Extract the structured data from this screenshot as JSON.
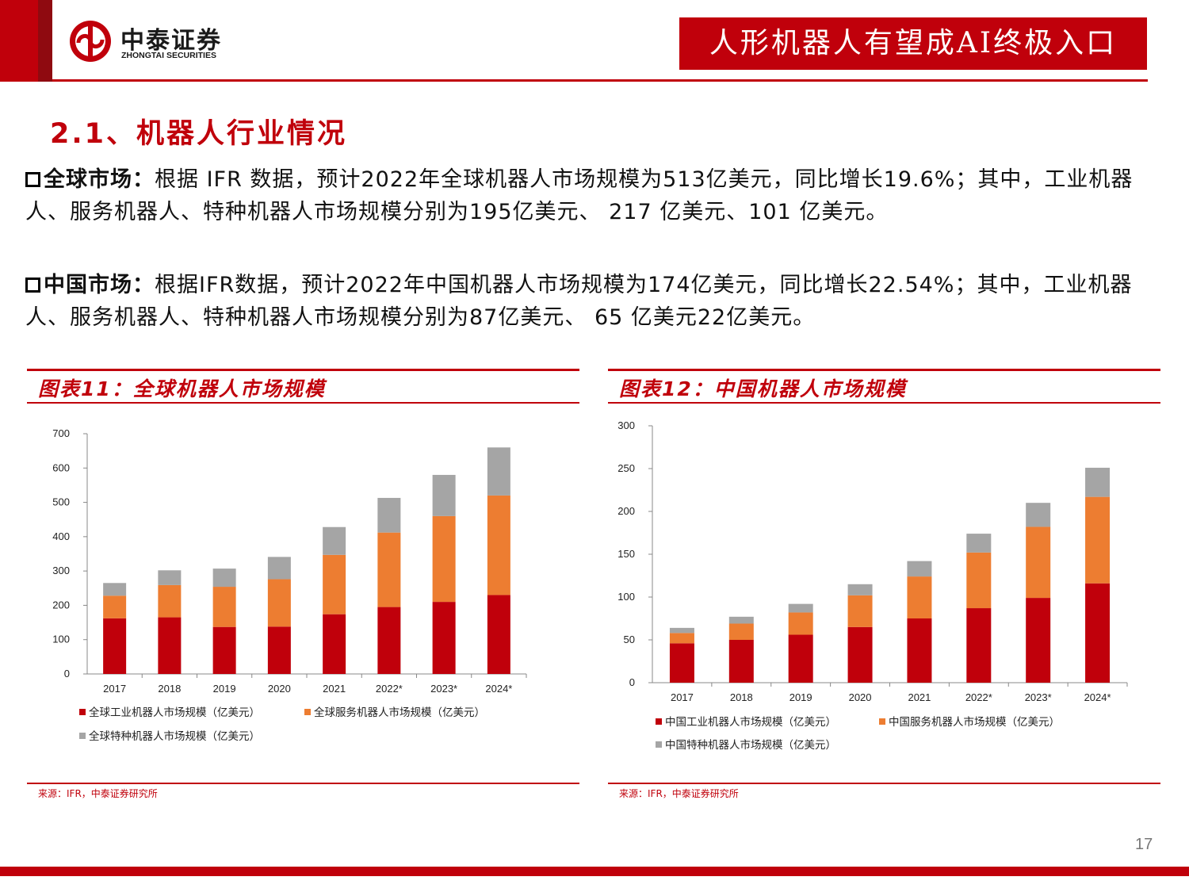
{
  "header": {
    "logo_cn": "中泰证券",
    "logo_en": "ZHONGTAI SECURITIES",
    "title": "人形机器人有望成AI终极入口",
    "brand_color": "#c0000b"
  },
  "section": {
    "title": "2.1、机器人行业情况"
  },
  "paragraphs": [
    {
      "lead": "全球市场：",
      "text": "根据 IFR 数据，预计2022年全球机器人市场规模为513亿美元，同比增长19.6%；其中，工业机器人、服务机器人、特种机器人市场规模分别为195亿美元、 217 亿美元、101 亿美元。"
    },
    {
      "lead": "中国市场：",
      "text": "根据IFR数据，预计2022年中国机器人市场规模为174亿美元，同比增长22.54%；其中，工业机器人、服务机器人、特种机器人市场规模分别为87亿美元、 65 亿美元22亿美元。"
    }
  ],
  "charts": [
    {
      "panel_title": "图表11：全球机器人市场规模",
      "source": "来源：IFR，中泰证券研究所"
    },
    {
      "panel_title": "图表12：中国机器人市场规模",
      "source": "来源：IFR，中泰证券研究所"
    }
  ],
  "chart_data": [
    {
      "type": "bar",
      "stacked": true,
      "title": "",
      "categories": [
        "2017",
        "2018",
        "2019",
        "2020",
        "2021",
        "2022*",
        "2023*",
        "2024*"
      ],
      "ylim": [
        0,
        700
      ],
      "yticks": [
        0,
        100,
        200,
        300,
        400,
        500,
        600,
        700
      ],
      "grid": false,
      "legend_position": "bottom",
      "series": [
        {
          "name": "全球工业机器人市场规模（亿美元）",
          "color": "#c0000b",
          "values": [
            162,
            165,
            137,
            138,
            174,
            195,
            210,
            230
          ]
        },
        {
          "name": "全球服务机器人市场规模（亿美元）",
          "color": "#ed7d31",
          "values": [
            66,
            94,
            117,
            138,
            173,
            217,
            250,
            290
          ]
        },
        {
          "name": "全球特种机器人市场规模（亿美元）",
          "color": "#a5a5a5",
          "values": [
            37,
            43,
            53,
            65,
            81,
            101,
            120,
            140
          ]
        }
      ]
    },
    {
      "type": "bar",
      "stacked": true,
      "title": "",
      "categories": [
        "2017",
        "2018",
        "2019",
        "2020",
        "2021",
        "2022*",
        "2023*",
        "2024*"
      ],
      "ylim": [
        0,
        300
      ],
      "yticks": [
        0,
        50,
        100,
        150,
        200,
        250,
        300
      ],
      "grid": false,
      "legend_position": "bottom",
      "series": [
        {
          "name": "中国工业机器人市场规模（亿美元）",
          "color": "#c0000b",
          "values": [
            46,
            50,
            56,
            65,
            75,
            87,
            99,
            116
          ]
        },
        {
          "name": "中国服务机器人市场规模（亿美元）",
          "color": "#ed7d31",
          "values": [
            12,
            19,
            26,
            37,
            49,
            65,
            83,
            101
          ]
        },
        {
          "name": "中国特种机器人市场规模（亿美元）",
          "color": "#a5a5a5",
          "values": [
            6,
            8,
            10,
            13,
            18,
            22,
            28,
            34
          ]
        }
      ]
    }
  ],
  "page_number": "17"
}
